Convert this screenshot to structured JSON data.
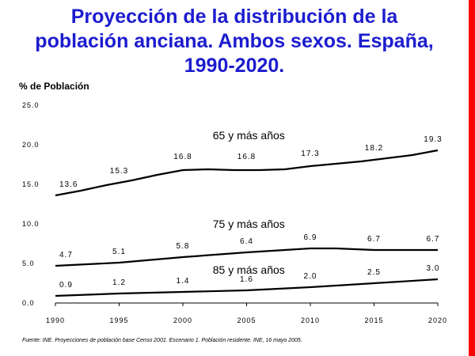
{
  "title": "Proyección de la distribución de la población anciana. Ambos sexos. España, 1990-2020.",
  "source": "Fuente: INE. Proyecciones de población base Censo 2001. Escenario 1. Población residente. INE, 16 mayo 2005.",
  "colors": {
    "title": "#1c1ccf",
    "accent_bar": "#ff0000",
    "line": "#000000"
  },
  "chart_data": {
    "type": "line",
    "ylabel": "% de Población",
    "xlim": [
      1990,
      2020
    ],
    "ylim": [
      0,
      25
    ],
    "x_ticks": [
      "1990",
      "1995",
      "2000",
      "2005",
      "2010",
      "2015",
      "2020"
    ],
    "y_ticks": [
      "25.0",
      "20.0",
      "15.0",
      "10.0",
      "5.0",
      "0.0"
    ],
    "grid": false,
    "series": [
      {
        "name": "65 y más años",
        "x": [
          1990,
          1992,
          1994,
          1996,
          1998,
          2000,
          2002,
          2004,
          2006,
          2008,
          2010,
          2012,
          2014,
          2016,
          2018,
          2020
        ],
        "y": [
          13.6,
          14.2,
          14.9,
          15.5,
          16.2,
          16.8,
          16.9,
          16.8,
          16.8,
          16.9,
          17.3,
          17.6,
          17.9,
          18.3,
          18.7,
          19.3
        ],
        "labels": [
          {
            "x": 1990,
            "y": 13.6,
            "text": "13.6"
          },
          {
            "x": 1995,
            "y": 15.3,
            "text": "15.3"
          },
          {
            "x": 2000,
            "y": 16.8,
            "text": "16.8"
          },
          {
            "x": 2005,
            "y": 16.8,
            "text": "16.8"
          },
          {
            "x": 2010,
            "y": 17.3,
            "text": "17.3"
          },
          {
            "x": 2015,
            "y": 18.2,
            "text": "18.2"
          },
          {
            "x": 2020,
            "y": 19.3,
            "text": "19.3"
          }
        ]
      },
      {
        "name": "75 y más años",
        "x": [
          1990,
          1995,
          2000,
          2005,
          2008,
          2010,
          2012,
          2015,
          2020
        ],
        "y": [
          4.7,
          5.1,
          5.8,
          6.4,
          6.7,
          6.9,
          6.9,
          6.7,
          6.7
        ],
        "labels": [
          {
            "x": 1990,
            "y": 4.7,
            "text": "4.7"
          },
          {
            "x": 1995,
            "y": 5.1,
            "text": "5.1"
          },
          {
            "x": 2000,
            "y": 5.8,
            "text": "5.8"
          },
          {
            "x": 2005,
            "y": 6.4,
            "text": "6.4"
          },
          {
            "x": 2010,
            "y": 6.9,
            "text": "6.9"
          },
          {
            "x": 2015,
            "y": 6.7,
            "text": "6.7"
          },
          {
            "x": 2020,
            "y": 6.7,
            "text": "6.7"
          }
        ]
      },
      {
        "name": "85 y más años",
        "x": [
          1990,
          1995,
          2000,
          2005,
          2010,
          2015,
          2020
        ],
        "y": [
          0.9,
          1.2,
          1.4,
          1.6,
          2.0,
          2.5,
          3.0
        ],
        "labels": [
          {
            "x": 1990,
            "y": 0.9,
            "text": "0.9"
          },
          {
            "x": 1995,
            "y": 1.2,
            "text": "1.2"
          },
          {
            "x": 2000,
            "y": 1.4,
            "text": "1.4"
          },
          {
            "x": 2005,
            "y": 1.6,
            "text": "1.6"
          },
          {
            "x": 2010,
            "y": 2.0,
            "text": "2.0"
          },
          {
            "x": 2015,
            "y": 2.5,
            "text": "2.5"
          },
          {
            "x": 2020,
            "y": 3.0,
            "text": "3.0"
          }
        ]
      }
    ]
  }
}
